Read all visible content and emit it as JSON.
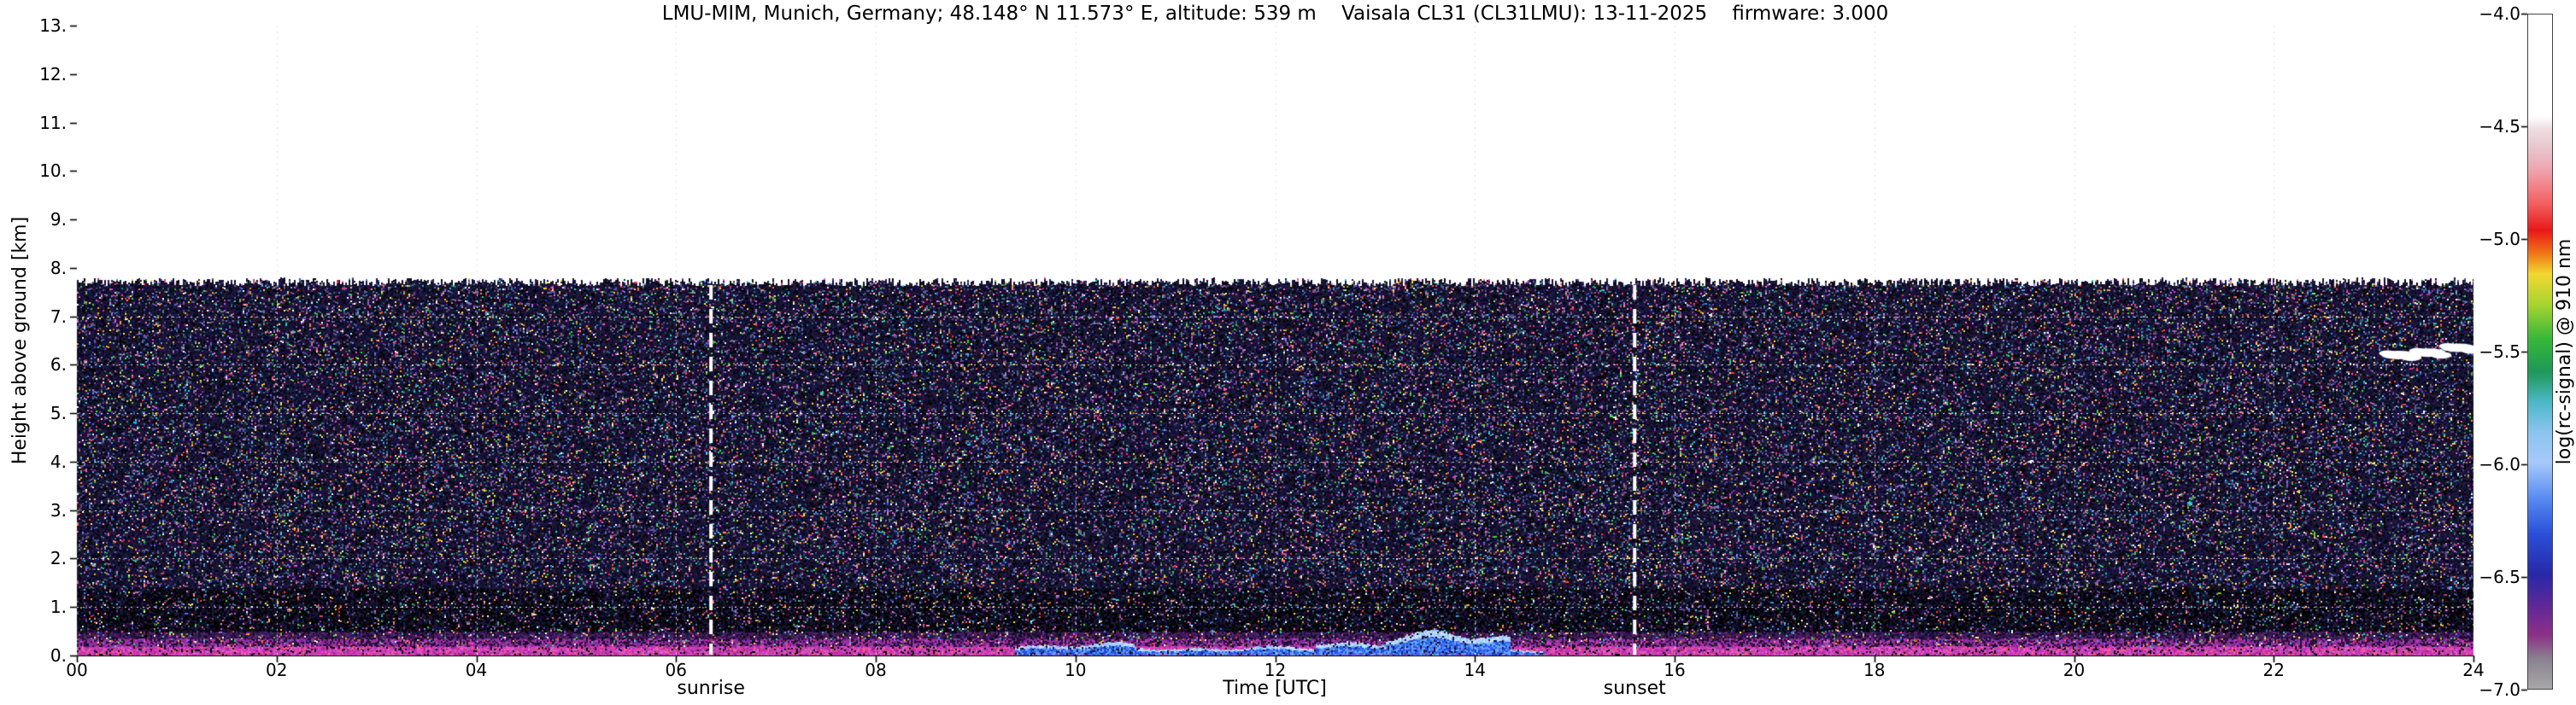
{
  "title": "LMU-MIM, Munich, Germany; 48.148° N 11.573° E, altitude: 539 m    Vaisala CL31 (CL31LMU): 13-11-2025    firmware: 3.000",
  "chart_data": {
    "type": "heatmap",
    "title": "LMU-MIM, Munich, Germany; 48.148° N 11.573° E, altitude: 539 m    Vaisala CL31 (CL31LMU): 13-11-2025    firmware: 3.000",
    "xlabel": "Time [UTC]",
    "ylabel": "Height above ground [km]",
    "xlim": [
      0,
      24
    ],
    "ylim": [
      0,
      13
    ],
    "xtick_labels": [
      "00",
      "02",
      "04",
      "06",
      "08",
      "10",
      "12",
      "14",
      "16",
      "18",
      "20",
      "22",
      "24"
    ],
    "xtick_hours": [
      0,
      2,
      4,
      6,
      8,
      10,
      12,
      14,
      16,
      18,
      20,
      22,
      24
    ],
    "ytick_labels": [
      "13.",
      "12.",
      "11.",
      "10.",
      "9.",
      "8.",
      "7.",
      "6.",
      "5.",
      "4.",
      "3.",
      "2.",
      "1.",
      "0."
    ],
    "ytick_km": [
      13,
      12,
      11,
      10,
      9,
      8,
      7,
      6,
      5,
      4,
      3,
      2,
      1,
      0
    ],
    "grid": "dotted",
    "annotations": [
      {
        "label": "sunrise",
        "hour": 6.35
      },
      {
        "label": "sunset",
        "hour": 15.6
      }
    ],
    "colorbar": {
      "label": "log(rc-signal) @ 910 nm",
      "tick_labels": [
        "−4.0",
        "−4.5",
        "−5.0",
        "−5.5",
        "−6.0",
        "−6.5",
        "−7.0"
      ],
      "vmax": -4.0,
      "vmin": -7.0,
      "gradient_stops": [
        {
          "pos": 0.0,
          "color": "#ffffff"
        },
        {
          "pos": 0.15,
          "color": "#ffffff"
        },
        {
          "pos": 0.17,
          "color": "#eedde2"
        },
        {
          "pos": 0.2,
          "color": "#e8c4cc"
        },
        {
          "pos": 0.23,
          "color": "#efa4b0"
        },
        {
          "pos": 0.28,
          "color": "#f26060"
        },
        {
          "pos": 0.32,
          "color": "#e81818"
        },
        {
          "pos": 0.355,
          "color": "#f07818"
        },
        {
          "pos": 0.385,
          "color": "#f2d830"
        },
        {
          "pos": 0.43,
          "color": "#a8d430"
        },
        {
          "pos": 0.48,
          "color": "#38b838"
        },
        {
          "pos": 0.53,
          "color": "#1e9858"
        },
        {
          "pos": 0.575,
          "color": "#4cb8c8"
        },
        {
          "pos": 0.62,
          "color": "#8cc4f0"
        },
        {
          "pos": 0.665,
          "color": "#a6c8fa"
        },
        {
          "pos": 0.72,
          "color": "#5588f0"
        },
        {
          "pos": 0.77,
          "color": "#2a50d8"
        },
        {
          "pos": 0.83,
          "color": "#2828a8"
        },
        {
          "pos": 0.875,
          "color": "#5c2898"
        },
        {
          "pos": 0.92,
          "color": "#8c3088"
        },
        {
          "pos": 0.955,
          "color": "#8a8090"
        },
        {
          "pos": 1.0,
          "color": "#a8a8a8"
        }
      ]
    },
    "features": {
      "data_top_km": 7.7,
      "surface_layer_top_km": 0.5,
      "dark_zone": {
        "from_km": 0.5,
        "to_km": 1.4
      },
      "blue_layer": {
        "segments": [
          {
            "from_hour": 9.4,
            "to_hour": 10.6,
            "top_km": 0.3
          },
          {
            "from_hour": 10.6,
            "to_hour": 12.4,
            "top_km": 0.22
          },
          {
            "from_hour": 12.4,
            "to_hour": 13.1,
            "top_km": 0.38
          },
          {
            "from_hour": 13.1,
            "to_hour": 14.35,
            "top_km": 0.55
          },
          {
            "from_hour": 14.35,
            "to_hour": 14.7,
            "top_km": 0.18
          }
        ]
      },
      "clouds": [
        {
          "hour": 23.25,
          "height_km": 6.2
        },
        {
          "hour": 23.55,
          "height_km": 6.25
        },
        {
          "hour": 23.85,
          "height_km": 6.35
        }
      ]
    },
    "noise": {
      "dark_colors": [
        "#000000",
        "#0a0a20",
        "#141432",
        "#1a1240",
        "#221848",
        "#241430",
        "#0e1530"
      ],
      "mid_colors": [
        "#4c5490",
        "#3f6a8c",
        "#7a4a8e",
        "#365a7c",
        "#6a5a9a"
      ],
      "bright_colors": [
        "#ffffff",
        "#ff4444",
        "#ffa030",
        "#ffe050",
        "#44cc44",
        "#30cccc",
        "#5588ff",
        "#cc55cc",
        "#ff70b0"
      ],
      "surface_colors": {
        "low": "#c83cb4",
        "low2": "#e058cc",
        "mid": "#8c2f9e",
        "high": "#50206a"
      },
      "blue_colors": [
        "#1e4fe0",
        "#3a74f2",
        "#6aa2f8",
        "#9cc6fa",
        "#c6e0fc"
      ]
    }
  }
}
